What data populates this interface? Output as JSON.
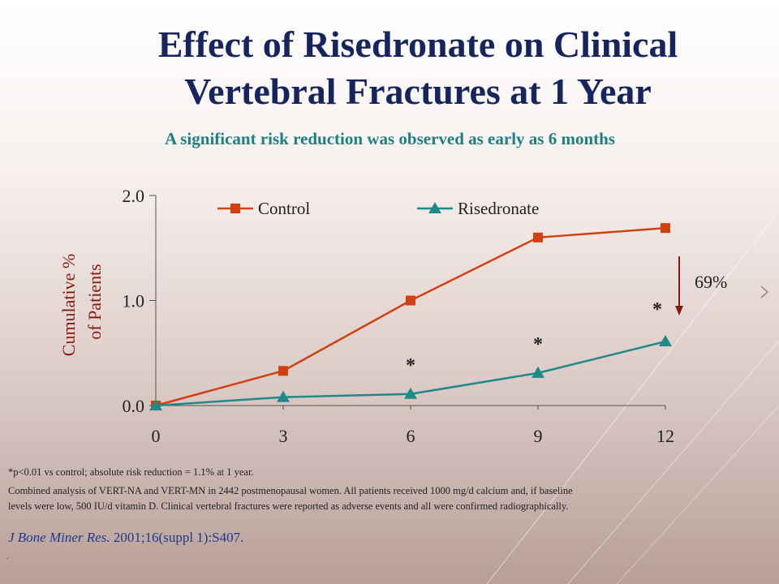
{
  "title": "Effect of Risedronate on Clinical Vertebral Fractures at 1 Year",
  "subtitle": "A significant risk reduction was observed as early as 6 months",
  "chart_data": {
    "type": "line",
    "x": [
      0,
      3,
      6,
      9,
      12
    ],
    "xticks": [
      "0",
      "3",
      "6",
      "9",
      "12"
    ],
    "yticks": [
      "0.0",
      "1.0",
      "2.0"
    ],
    "ylim": [
      0,
      2.0
    ],
    "xlim": [
      0,
      12
    ],
    "ylabel_line1": "Cumulative %",
    "ylabel_line2": "of Patients",
    "series": [
      {
        "name": "Control",
        "values": [
          0,
          0.33,
          1.0,
          1.6,
          1.69
        ],
        "color": "#d04010",
        "marker": "square"
      },
      {
        "name": "Risedronate",
        "values": [
          0,
          0.08,
          0.11,
          0.31,
          0.61
        ],
        "color": "#1f8a8a",
        "marker": "triangle"
      }
    ],
    "significance_markers": [
      {
        "x": 6,
        "label": "*"
      },
      {
        "x": 9,
        "label": "*"
      },
      {
        "x": 12,
        "label": "*"
      }
    ],
    "annotation": {
      "label": "69%",
      "color": "#8a1a10"
    }
  },
  "footnotes": {
    "line1": "*p<0.01 vs control;  absolute  risk  reduction  = 1.1% at 1 year.",
    "line2": "Combined analysis  of VERT-NA and VERT-MN  in 2442 postmenopausal  women. All patients  received  1000 mg/d calcium  and, if baseline",
    "line3": "levels  were  low,  500 IU/d vitamin  D.  Clinical   vertebral  fractures  were reported  as adverse  events  and all  were  confirmed  radiographically."
  },
  "citation": {
    "journal": "J Bone Miner Res.",
    "details": " 2001;16(suppl 1):S407."
  },
  "trailing_mark": "."
}
